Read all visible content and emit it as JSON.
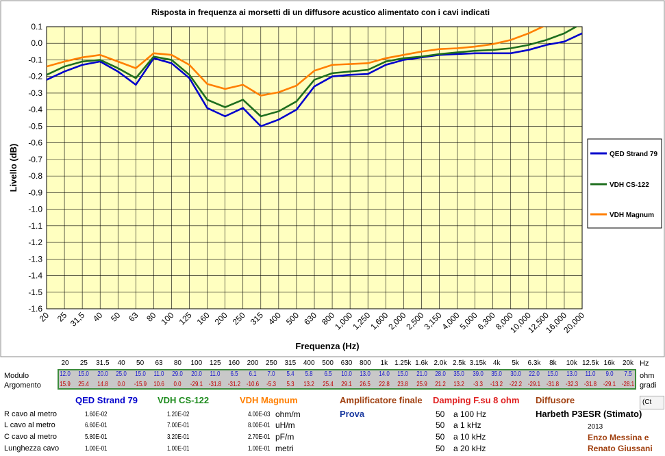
{
  "chart_data": {
    "type": "line",
    "title": "Risposta in frequenza ai morsetti di un diffusore acustico alimentato con i cavi indicati",
    "xlabel": "Frequenza (Hz)",
    "ylabel": "Livello (dB)",
    "categories": [
      "20",
      "25",
      "31,5",
      "40",
      "50",
      "63",
      "80",
      "100",
      "125",
      "160",
      "200",
      "250",
      "315",
      "400",
      "500",
      "630",
      "800",
      "1,000",
      "1,250",
      "1,600",
      "2,000",
      "2,500",
      "3,150",
      "4,000",
      "5,000",
      "6,300",
      "8,000",
      "10,000",
      "12,500",
      "16,000",
      "20,000"
    ],
    "ylim": [
      -1.6,
      0.1
    ],
    "yticks": [
      "0.1",
      "0.0",
      "-0.1",
      "-0.2",
      "-0.3",
      "-0.4",
      "-0.5",
      "-0.6",
      "-0.7",
      "-0.8",
      "-0.9",
      "-1.0",
      "-1.1",
      "-1.2",
      "-1.3",
      "-1.4",
      "-1.5",
      "-1.6"
    ],
    "grid": true,
    "legend_position": "right",
    "series": [
      {
        "name": "QED Strand 79",
        "color": "#0000cc",
        "values": [
          -0.22,
          -0.17,
          -0.13,
          -0.11,
          -0.17,
          -0.25,
          -0.09,
          -0.12,
          -0.21,
          -0.39,
          -0.44,
          -0.39,
          -0.5,
          -0.46,
          -0.4,
          -0.26,
          -0.2,
          -0.19,
          -0.185,
          -0.13,
          -0.1,
          -0.085,
          -0.07,
          -0.065,
          -0.06,
          -0.06,
          -0.06,
          -0.04,
          -0.01,
          0.01,
          0.06
        ]
      },
      {
        "name": "VDH CS-122",
        "color": "#1e6e1e",
        "values": [
          -0.19,
          -0.14,
          -0.11,
          -0.1,
          -0.15,
          -0.21,
          -0.08,
          -0.1,
          -0.19,
          -0.34,
          -0.385,
          -0.34,
          -0.44,
          -0.41,
          -0.35,
          -0.22,
          -0.18,
          -0.17,
          -0.16,
          -0.11,
          -0.09,
          -0.08,
          -0.065,
          -0.055,
          -0.045,
          -0.04,
          -0.03,
          -0.01,
          0.02,
          0.06,
          0.12
        ]
      },
      {
        "name": "VDH Magnum",
        "color": "#ff7f00",
        "values": [
          -0.14,
          -0.11,
          -0.085,
          -0.07,
          -0.11,
          -0.15,
          -0.06,
          -0.07,
          -0.13,
          -0.245,
          -0.275,
          -0.25,
          -0.315,
          -0.295,
          -0.255,
          -0.165,
          -0.13,
          -0.125,
          -0.12,
          -0.09,
          -0.07,
          -0.05,
          -0.035,
          -0.03,
          -0.02,
          -0.005,
          0.02,
          0.06,
          0.11,
          0.15,
          0.18
        ]
      }
    ]
  },
  "table": {
    "freqs": [
      "20",
      "25",
      "31.5",
      "40",
      "50",
      "63",
      "80",
      "100",
      "125",
      "160",
      "200",
      "250",
      "315",
      "400",
      "500",
      "630",
      "800",
      "1k",
      "1.25k",
      "1.6k",
      "2.0k",
      "2.5k",
      "3.15k",
      "4k",
      "5k",
      "6.3k",
      "8k",
      "10k",
      "12.5k",
      "16k",
      "20k"
    ],
    "hz_label": "Hz",
    "row1_label": "Modulo",
    "row2_label": "Argomento",
    "row1_unit": "ohm",
    "row2_unit": "gradi",
    "modulo": [
      "12.0",
      "15.0",
      "20.0",
      "25.0",
      "15.0",
      "11.0",
      "29.0",
      "20.0",
      "11.0",
      "6.5",
      "6.1",
      "7.0",
      "5.4",
      "5.8",
      "6.5",
      "10.0",
      "13.0",
      "14.0",
      "15.0",
      "21.0",
      "28.0",
      "35.0",
      "39.0",
      "35.0",
      "30.0",
      "22.0",
      "15.0",
      "13.0",
      "11.0",
      "9.0",
      "7.5"
    ],
    "argomento": [
      "15.9",
      "25.4",
      "14.8",
      "0.0",
      "-15.9",
      "10.6",
      "0.0",
      "-29.1",
      "-31.8",
      "-31.2",
      "-10.6",
      "-5.3",
      "5.3",
      "13.2",
      "25.4",
      "29.1",
      "26.5",
      "22.8",
      "23.8",
      "25.9",
      "21.2",
      "13.2",
      "-3.3",
      "-13.2",
      "-22.2",
      "-29.1",
      "-31.8",
      "-32.3",
      "-31.8",
      "-29.1",
      "-28.1"
    ]
  },
  "cables": {
    "titles": [
      {
        "label": "QED Strand 79",
        "color": "#0000cc"
      },
      {
        "label": "VDH CS-122",
        "color": "#1e8c1e"
      },
      {
        "label": "VDH Magnum",
        "color": "#ff7f00"
      }
    ],
    "params": [
      {
        "label": "R cavo al metro",
        "values": [
          "1.60E-02",
          "1.20E-02",
          "4.00E-03"
        ],
        "unit": "ohm/m"
      },
      {
        "label": "L cavo al metro",
        "values": [
          "6.60E-01",
          "7.00E-01",
          "8.00E-01"
        ],
        "unit": "uH/m"
      },
      {
        "label": "C cavo al metro",
        "values": [
          "5.80E-01",
          "3.20E-01",
          "2.70E-01"
        ],
        "unit": "pF/m"
      },
      {
        "label": "Lunghezza cavo",
        "values": [
          "1.00E-01",
          "1.00E-01",
          "1.00E-01"
        ],
        "unit": "metri"
      }
    ]
  },
  "amplifier": {
    "title": "Amplificatore finale",
    "value": "Prova"
  },
  "damping": {
    "title": "Damping F.su 8 ohm",
    "rows": [
      {
        "value": "50",
        "freq": "a 100 Hz"
      },
      {
        "value": "50",
        "freq": "a 1 kHz"
      },
      {
        "value": "50",
        "freq": "a 10 kHz"
      },
      {
        "value": "50",
        "freq": "a 20 kHz"
      }
    ]
  },
  "speaker": {
    "title": "Diffusore",
    "value": "Harbeth P3ESR (Stimato)"
  },
  "credits": {
    "year": "2013",
    "authors": [
      "Enzo Messina e",
      "Renato Giussani"
    ]
  },
  "paste_icon_label": "(Ct"
}
